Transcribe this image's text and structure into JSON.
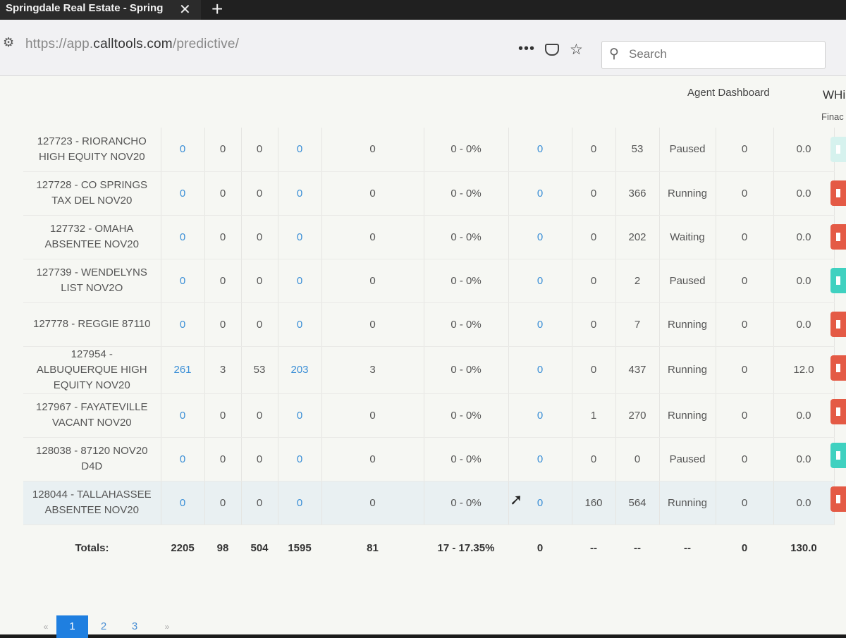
{
  "browser": {
    "tab_title": "Springdale Real Estate - Spring",
    "url_scheme": "https://app.",
    "url_host": "calltools.com",
    "url_path": "/predictive/",
    "search_placeholder": "Search"
  },
  "nav": {
    "agent_dashboard": "Agent Dashboard",
    "wh_label": "WHi",
    "fin_label": "Finac"
  },
  "rows": [
    {
      "name_l1": "127723 - RIORANCHO",
      "name_l2": "HIGH EQUITY NOV20",
      "c1": "0",
      "c2": "0",
      "c3": "0",
      "c4": "0",
      "c5": "0",
      "c6": "0 - 0%",
      "c7": "0",
      "c8": "0",
      "c9": "53",
      "status": "Paused",
      "c11": "0",
      "c12": "0.0"
    },
    {
      "name_l1": "127728 - CO SPRINGS",
      "name_l2": "TAX DEL NOV20",
      "c1": "0",
      "c2": "0",
      "c3": "0",
      "c4": "0",
      "c5": "0",
      "c6": "0 - 0%",
      "c7": "0",
      "c8": "0",
      "c9": "366",
      "status": "Running",
      "c11": "0",
      "c12": "0.0"
    },
    {
      "name_l1": "127732 - OMAHA",
      "name_l2": "ABSENTEE NOV20",
      "c1": "0",
      "c2": "0",
      "c3": "0",
      "c4": "0",
      "c5": "0",
      "c6": "0 - 0%",
      "c7": "0",
      "c8": "0",
      "c9": "202",
      "status": "Waiting",
      "c11": "0",
      "c12": "0.0"
    },
    {
      "name_l1": "127739 - WENDELYNS",
      "name_l2": "LIST NOV2O",
      "c1": "0",
      "c2": "0",
      "c3": "0",
      "c4": "0",
      "c5": "0",
      "c6": "0 - 0%",
      "c7": "0",
      "c8": "0",
      "c9": "2",
      "status": "Paused",
      "c11": "0",
      "c12": "0.0"
    },
    {
      "name_l1": "127778 - REGGIE 87110",
      "name_l2": "",
      "c1": "0",
      "c2": "0",
      "c3": "0",
      "c4": "0",
      "c5": "0",
      "c6": "0 - 0%",
      "c7": "0",
      "c8": "0",
      "c9": "7",
      "status": "Running",
      "c11": "0",
      "c12": "0.0"
    },
    {
      "name_l1": "127954 -",
      "name_l2": "ALBUQUERQUE HIGH EQUITY NOV20",
      "c1": "261",
      "c2": "3",
      "c3": "53",
      "c4": "203",
      "c5": "3",
      "c6": "0 - 0%",
      "c7": "0",
      "c8": "0",
      "c9": "437",
      "status": "Running",
      "c11": "0",
      "c12": "12.0"
    },
    {
      "name_l1": "127967 - FAYATEVILLE",
      "name_l2": "VACANT NOV20",
      "c1": "0",
      "c2": "0",
      "c3": "0",
      "c4": "0",
      "c5": "0",
      "c6": "0 - 0%",
      "c7": "0",
      "c8": "1",
      "c9": "270",
      "status": "Running",
      "c11": "0",
      "c12": "0.0"
    },
    {
      "name_l1": "128038 - 87120 NOV20",
      "name_l2": "D4D",
      "c1": "0",
      "c2": "0",
      "c3": "0",
      "c4": "0",
      "c5": "0",
      "c6": "0 - 0%",
      "c7": "0",
      "c8": "0",
      "c9": "0",
      "status": "Paused",
      "c11": "0",
      "c12": "0.0"
    },
    {
      "name_l1": "128044 - TALLAHASSEE",
      "name_l2": "ABSENTEE NOV20",
      "c1": "0",
      "c2": "0",
      "c3": "0",
      "c4": "0",
      "c5": "0",
      "c6": "0 - 0%",
      "c7": "0",
      "c8": "160",
      "c9": "564",
      "status": "Running",
      "c11": "0",
      "c12": "0.0"
    }
  ],
  "totals": {
    "label": "Totals:",
    "c1": "2205",
    "c2": "98",
    "c3": "504",
    "c4": "1595",
    "c5": "81",
    "c6": "17 - 17.35%",
    "c7": "0",
    "c8": "--",
    "c9": "--",
    "c10": "--",
    "c11": "0",
    "c12": "130.0"
  },
  "actions": [
    "pale",
    "red",
    "red",
    "teal",
    "red",
    "red",
    "red",
    "teal",
    "red"
  ],
  "pagination": {
    "prev": "«",
    "pages": [
      "1",
      "2",
      "3"
    ],
    "next": "»",
    "active": "1"
  }
}
